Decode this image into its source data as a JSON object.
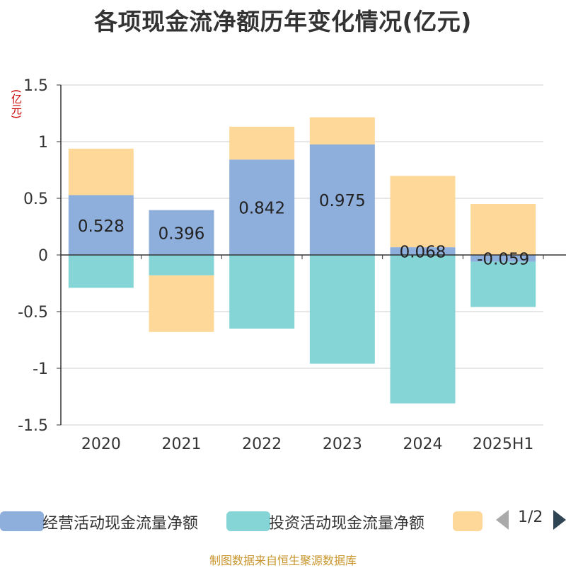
{
  "chart_data": {
    "type": "bar",
    "stacked": true,
    "title": "各项现金流净额历年变化情况(亿元)",
    "y_unit": "(亿元)",
    "categories": [
      "2020",
      "2021",
      "2022",
      "2023",
      "2024",
      "2025H1"
    ],
    "ylim": [
      -1.5,
      1.5
    ],
    "y_ticks": [
      1.5,
      1,
      0.5,
      0,
      -0.5,
      -1,
      -1.5
    ],
    "y_tick_labels": [
      "1.5",
      "1",
      "0.5",
      "0",
      "-0.5",
      "-1",
      "-1.5"
    ],
    "grid": true,
    "series": [
      {
        "name": "经营活动现金流量净额",
        "color": "#8eaedb",
        "values": [
          0.528,
          0.396,
          0.842,
          0.975,
          0.068,
          -0.059
        ],
        "labels": [
          "0.528",
          "0.396",
          "0.842",
          "0.975",
          "0.068",
          "-0.059"
        ]
      },
      {
        "name": "投资活动现金流量净额",
        "color": "#86d5d6",
        "values": [
          -0.29,
          -0.18,
          -0.65,
          -0.96,
          -1.31,
          -0.4
        ]
      },
      {
        "name": "",
        "color": "#fed898",
        "values": [
          0.41,
          -0.5,
          0.29,
          0.24,
          0.63,
          0.45
        ]
      }
    ],
    "legend_position": "bottom",
    "legend_page": "1/2"
  },
  "source": "制图数据来自恒生聚源数据库"
}
